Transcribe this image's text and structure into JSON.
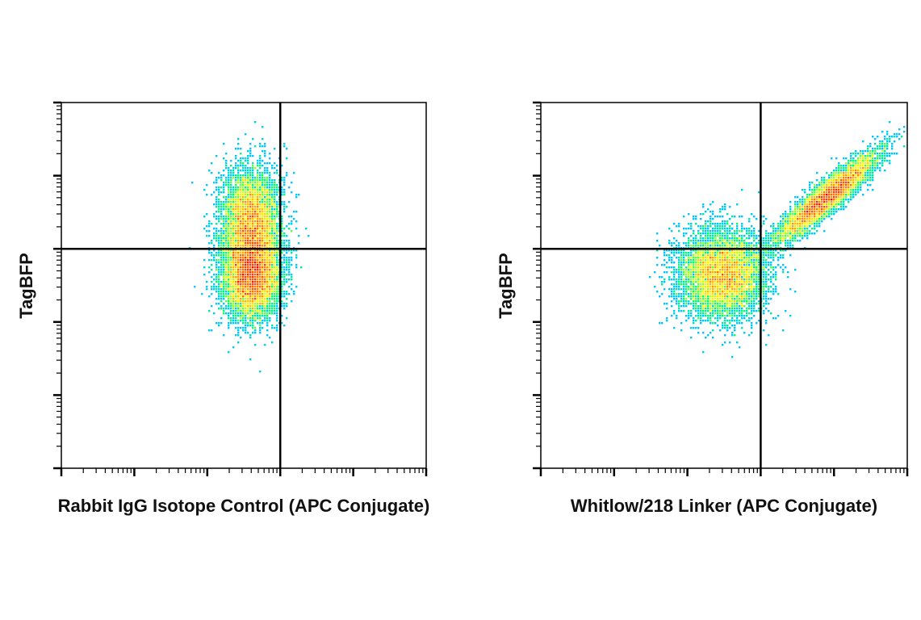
{
  "chart_data": [
    {
      "type": "scatter",
      "subtype": "flow-cytometry-density",
      "title": "",
      "xlabel": "Rabbit IgG Isotope Control (APC Conjugate)",
      "ylabel": "TagBFP",
      "x_scale": "log",
      "y_scale": "log",
      "xlim": [
        1,
        100000
      ],
      "ylim": [
        1,
        100000
      ],
      "quadrant_gate": {
        "x": 1000,
        "y": 1000
      },
      "populations": [
        {
          "name": "",
          "center": [
            400,
            2500
          ],
          "spread": [
            0.2,
            0.35
          ],
          "count": 5200
        },
        {
          "name": "",
          "center": [
            400,
            450
          ],
          "spread": [
            0.2,
            0.3
          ],
          "count": 6800
        }
      ],
      "quadrant_percentages": null,
      "colormap": [
        "#0000ff",
        "#00c8ff",
        "#00ff66",
        "#ffff00",
        "#ff8800",
        "#ff0000"
      ]
    },
    {
      "type": "scatter",
      "subtype": "flow-cytometry-density",
      "title": "",
      "xlabel": "Whitlow/218 Linker (APC Conjugate)",
      "ylabel": "TagBFP",
      "x_scale": "log",
      "y_scale": "log",
      "xlim": [
        1,
        100000
      ],
      "ylim": [
        1,
        100000
      ],
      "quadrant_gate": {
        "x": 1000,
        "y": 1000
      },
      "populations": [
        {
          "name": "",
          "center": [
            300,
            450
          ],
          "spread": [
            0.3,
            0.3
          ],
          "count": 6500
        },
        {
          "name": "",
          "center": [
            8000,
            5000
          ],
          "spread": [
            0.35,
            0.08
          ],
          "count": 5500,
          "diagonal": true
        }
      ],
      "quadrant_percentages": null,
      "colormap": [
        "#0000ff",
        "#00c8ff",
        "#00ff66",
        "#ffff00",
        "#ff8800",
        "#ff0000"
      ]
    }
  ]
}
